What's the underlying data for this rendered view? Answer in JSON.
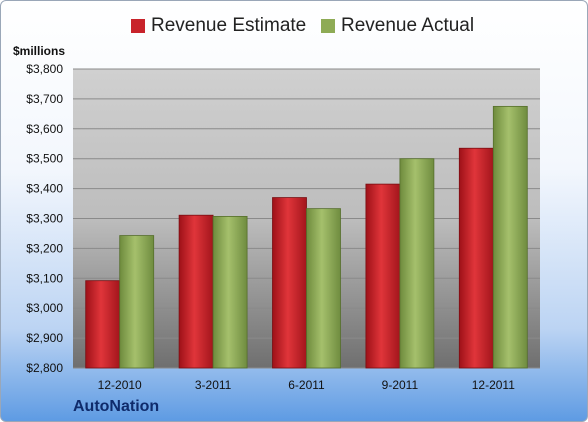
{
  "chart_data": {
    "type": "bar",
    "categories": [
      "12-2010",
      "3-2011",
      "6-2011",
      "9-2011",
      "12-2011"
    ],
    "series": [
      {
        "name": "Revenue Estimate",
        "values": [
          3092,
          3311,
          3370,
          3415,
          3535
        ],
        "color": "#c8232b"
      },
      {
        "name": "Revenue Actual",
        "values": [
          3243,
          3307,
          3333,
          3500,
          3675
        ],
        "color": "#8eab55"
      }
    ],
    "ylim": [
      2800,
      3800
    ],
    "yticks": [
      "$2,800",
      "$2,900",
      "$3,000",
      "$3,100",
      "$3,200",
      "$3,300",
      "$3,400",
      "$3,500",
      "$3,600",
      "$3,700",
      "$3,800"
    ],
    "yunit": "$millions",
    "grid": true,
    "legend": "top"
  },
  "brand": "AutoNation"
}
